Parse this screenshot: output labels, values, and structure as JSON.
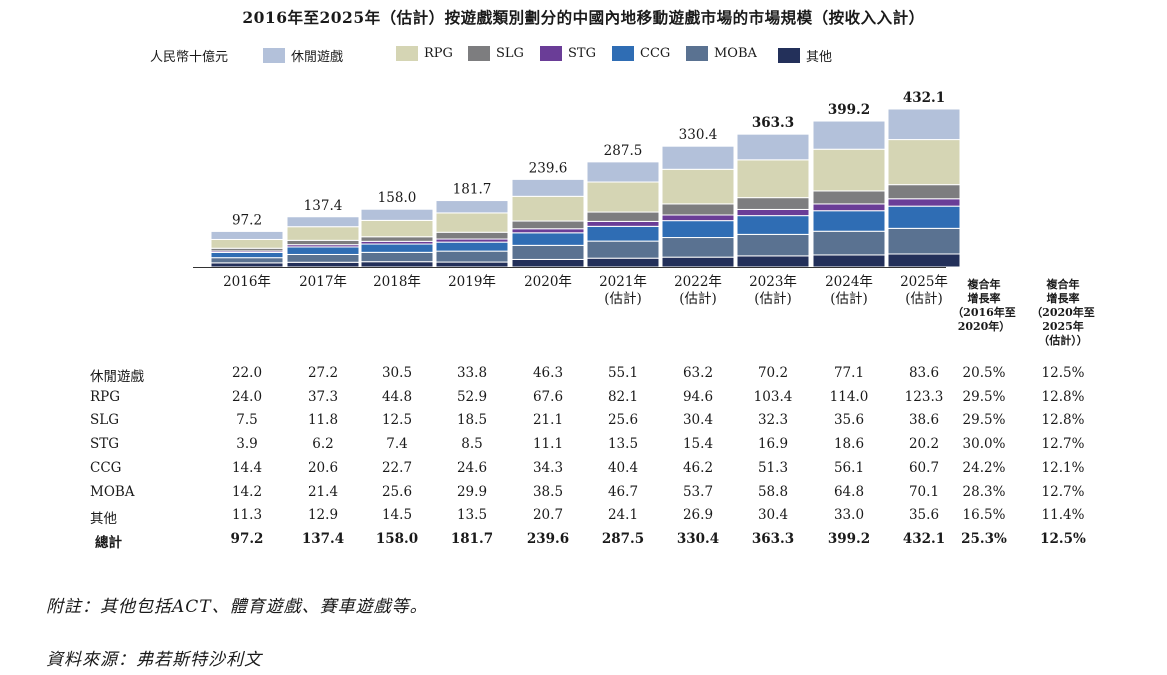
{
  "title": "2016年至2025年（估計）按遊戲類別劃分的中國內地移動遊戲市場的市場規模（按收入入計）",
  "unit": "人民幣十億元",
  "colors": {
    "休閒遊戲": "#b3c1da",
    "RPG": "#d5d5b4",
    "SLG": "#7d7d7f",
    "STG": "#6a3d97",
    "CCG": "#2f6db4",
    "MOBA": "#5a7291",
    "其他": "#23305a"
  },
  "chart_data": {
    "type": "bar",
    "stacked": true,
    "categories": [
      "2016年",
      "2017年",
      "2018年",
      "2019年",
      "2020年",
      "2021年\n(估計)",
      "2022年\n(估計)",
      "2023年\n(估計)",
      "2024年\n(估計)",
      "2025年\n(估計)"
    ],
    "series": [
      {
        "name": "其他",
        "values": [
          11.3,
          12.9,
          14.5,
          13.5,
          20.7,
          24.1,
          26.9,
          30.4,
          33.0,
          35.6
        ]
      },
      {
        "name": "MOBA",
        "values": [
          14.2,
          21.4,
          25.6,
          29.9,
          38.5,
          46.7,
          53.7,
          58.8,
          64.8,
          70.1
        ]
      },
      {
        "name": "CCG",
        "values": [
          14.4,
          20.6,
          22.7,
          24.6,
          34.3,
          40.4,
          46.2,
          51.3,
          56.1,
          60.7
        ]
      },
      {
        "name": "STG",
        "values": [
          3.9,
          6.2,
          7.4,
          8.5,
          11.1,
          13.5,
          15.4,
          16.9,
          18.6,
          20.2
        ]
      },
      {
        "name": "SLG",
        "values": [
          7.5,
          11.8,
          12.5,
          18.5,
          21.1,
          25.6,
          30.4,
          32.3,
          35.6,
          38.6
        ]
      },
      {
        "name": "RPG",
        "values": [
          24.0,
          37.3,
          44.8,
          52.9,
          67.6,
          82.1,
          94.6,
          103.4,
          114.0,
          123.3
        ]
      },
      {
        "name": "休閒遊戲",
        "values": [
          22.0,
          27.2,
          30.5,
          33.8,
          46.3,
          55.1,
          63.2,
          70.2,
          77.1,
          83.6
        ]
      }
    ],
    "totals": [
      "97.2",
      "137.4",
      "158.0",
      "181.7",
      "239.6",
      "287.5",
      "330.4",
      "363.3",
      "399.2",
      "432.1"
    ],
    "legend_order": [
      "休閒遊戲",
      "RPG",
      "SLG",
      "STG",
      "CCG",
      "MOBA",
      "其他"
    ],
    "ylim": [
      0,
      432.1
    ],
    "legend_position": "top"
  },
  "cagr_headers": [
    "複合年\n增長率\n（2016年至\n2020年）",
    "複合年\n增長率\n（2020年至\n2025年\n（估計））"
  ],
  "table": {
    "rows": [
      {
        "label": "休閒遊戲",
        "values": [
          "22.0",
          "27.2",
          "30.5",
          "33.8",
          "46.3",
          "55.1",
          "63.2",
          "70.2",
          "77.1",
          "83.6"
        ],
        "cagr1": "20.5%",
        "cagr2": "12.5%"
      },
      {
        "label": "RPG",
        "values": [
          "24.0",
          "37.3",
          "44.8",
          "52.9",
          "67.6",
          "82.1",
          "94.6",
          "103.4",
          "114.0",
          "123.3"
        ],
        "cagr1": "29.5%",
        "cagr2": "12.8%"
      },
      {
        "label": "SLG",
        "values": [
          "7.5",
          "11.8",
          "12.5",
          "18.5",
          "21.1",
          "25.6",
          "30.4",
          "32.3",
          "35.6",
          "38.6"
        ],
        "cagr1": "29.5%",
        "cagr2": "12.8%"
      },
      {
        "label": "STG",
        "values": [
          "3.9",
          "6.2",
          "7.4",
          "8.5",
          "11.1",
          "13.5",
          "15.4",
          "16.9",
          "18.6",
          "20.2"
        ],
        "cagr1": "30.0%",
        "cagr2": "12.7%"
      },
      {
        "label": "CCG",
        "values": [
          "14.4",
          "20.6",
          "22.7",
          "24.6",
          "34.3",
          "40.4",
          "46.2",
          "51.3",
          "56.1",
          "60.7"
        ],
        "cagr1": "24.2%",
        "cagr2": "12.1%"
      },
      {
        "label": "MOBA",
        "values": [
          "14.2",
          "21.4",
          "25.6",
          "29.9",
          "38.5",
          "46.7",
          "53.7",
          "58.8",
          "64.8",
          "70.1"
        ],
        "cagr1": "28.3%",
        "cagr2": "12.7%"
      },
      {
        "label": "其他",
        "values": [
          "11.3",
          "12.9",
          "14.5",
          "13.5",
          "20.7",
          "24.1",
          "26.9",
          "30.4",
          "33.0",
          "35.6"
        ],
        "cagr1": "16.5%",
        "cagr2": "11.4%"
      }
    ],
    "total": {
      "label": "總計",
      "values": [
        "97.2",
        "137.4",
        "158.0",
        "181.7",
        "239.6",
        "287.5",
        "330.4",
        "363.3",
        "399.2",
        "432.1"
      ],
      "cagr1": "25.3%",
      "cagr2": "12.5%"
    }
  },
  "notes": {
    "note": "附註：其他包括ACT、體育遊戲、賽車遊戲等。",
    "source": "資料來源：弗若斯特沙利文"
  }
}
